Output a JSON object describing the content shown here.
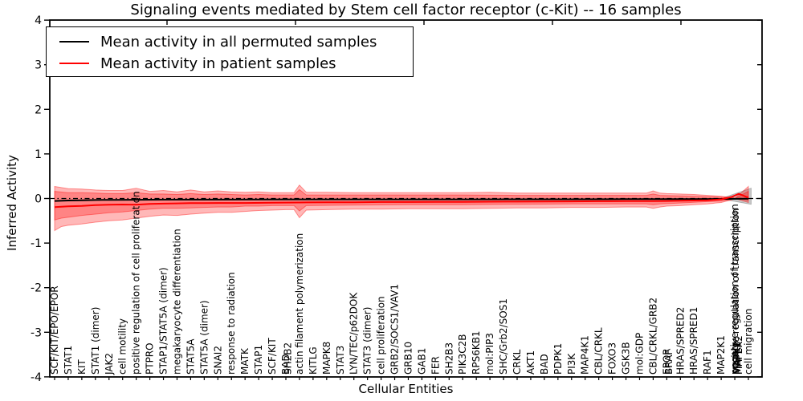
{
  "chart_data": {
    "type": "line",
    "title": "Signaling events mediated by Stem cell factor receptor (c-Kit) -- 16 samples",
    "xlabel": "Cellular Entities",
    "ylabel": "Inferred Activity",
    "ylim": [
      -4,
      4
    ],
    "yticks": [
      "4",
      "3",
      "2",
      "1",
      "0",
      "-1",
      "-2",
      "-3",
      "-4"
    ],
    "ytick_values": [
      4,
      3,
      2,
      1,
      0,
      -1,
      -2,
      -3,
      -4
    ],
    "grid": false,
    "zero_line": {
      "y": 0,
      "style": "dashdot",
      "color": "#000000"
    },
    "legend": {
      "position": "upper left",
      "entries": [
        {
          "label": "Mean activity in all permuted samples",
          "color": "#000000"
        },
        {
          "label": "Mean activity in patient samples",
          "color": "#ff0000"
        }
      ]
    },
    "entities": [
      {
        "i": 0,
        "label": "SCF/KIT/EPO/EPOR"
      },
      {
        "i": 1,
        "label": "STAT1"
      },
      {
        "i": 2,
        "label": "KIT"
      },
      {
        "i": 3,
        "label": "STAT1 (dimer)"
      },
      {
        "i": 4,
        "label": "JAK2"
      },
      {
        "i": 5,
        "label": "cell motility"
      },
      {
        "i": 6,
        "label": "positive regulation of cell proliferation"
      },
      {
        "i": 7,
        "label": "PTPRO"
      },
      {
        "i": 8,
        "label": "STAP1/STAT5A (dimer)"
      },
      {
        "i": 9,
        "label": "megakaryocyte differentiation"
      },
      {
        "i": 10,
        "label": "STAT5A"
      },
      {
        "i": 11,
        "label": "STAT5A (dimer)"
      },
      {
        "i": 12,
        "label": "SNAI2"
      },
      {
        "i": 13,
        "label": "response to radiation"
      },
      {
        "i": 14,
        "label": "MATK"
      },
      {
        "i": 15,
        "label": "STAP1"
      },
      {
        "i": 16,
        "label": "SCF/KIT"
      },
      {
        "i": 17,
        "label": "BAD"
      },
      {
        "i": 17.15,
        "label": "SH2B2"
      },
      {
        "i": 18,
        "label": "actin filament polymerization"
      },
      {
        "i": 19,
        "label": "KITLG"
      },
      {
        "i": 20,
        "label": "MAPK8"
      },
      {
        "i": 21,
        "label": "STAT3"
      },
      {
        "i": 22,
        "label": "LYN/TEC/p62DOK"
      },
      {
        "i": 23,
        "label": "STAT3 (dimer)"
      },
      {
        "i": 24,
        "label": "cell proliferation"
      },
      {
        "i": 25,
        "label": "GRB2/SOCS1/VAV1"
      },
      {
        "i": 26,
        "label": "GRB10"
      },
      {
        "i": 27,
        "label": "GAB1"
      },
      {
        "i": 28,
        "label": "FER"
      },
      {
        "i": 29,
        "label": "SH2B3"
      },
      {
        "i": 30,
        "label": "PIK3C2B"
      },
      {
        "i": 31,
        "label": "RPS6KB1"
      },
      {
        "i": 32,
        "label": "mol:PIP3"
      },
      {
        "i": 33,
        "label": "SHC/Grb2/SOS1"
      },
      {
        "i": 34,
        "label": "CRKL"
      },
      {
        "i": 35,
        "label": "AKT1"
      },
      {
        "i": 36,
        "label": "BAD"
      },
      {
        "i": 37,
        "label": "PDPK1"
      },
      {
        "i": 38,
        "label": "PI3K"
      },
      {
        "i": 39,
        "label": "MAP4K1"
      },
      {
        "i": 40,
        "label": "CBL/CRKL"
      },
      {
        "i": 41,
        "label": "FOXO3"
      },
      {
        "i": 42,
        "label": "GSK3B"
      },
      {
        "i": 43,
        "label": "mol:GDP"
      },
      {
        "i": 44,
        "label": "CBL/CRKL/GRB2"
      },
      {
        "i": 45,
        "label": "EPOR"
      },
      {
        "i": 45.15,
        "label": "BRAF"
      },
      {
        "i": 46,
        "label": "HRAS/SPRED2"
      },
      {
        "i": 47,
        "label": "HRAS/SPRED1"
      },
      {
        "i": 48,
        "label": "RAF1"
      },
      {
        "i": 49,
        "label": "MAP2K1"
      },
      {
        "i": 50,
        "label": "negative regulation of transcription"
      },
      {
        "i": 50.07,
        "label": "positive regulation of transcription"
      },
      {
        "i": 50.14,
        "label": "MAPK1"
      },
      {
        "i": 50.21,
        "label": "MAPK3"
      },
      {
        "i": 50.28,
        "label": "MAP2K2"
      },
      {
        "i": 50.18,
        "label": "FES"
      },
      {
        "i": 51,
        "label": "cell migration"
      }
    ],
    "series": [
      {
        "name": "Mean activity in all permuted samples",
        "color": "#000000",
        "width": 2,
        "points": [
          [
            0,
            -0.055
          ],
          [
            1,
            -0.045
          ],
          [
            2,
            -0.04
          ],
          [
            3,
            -0.035
          ],
          [
            4,
            -0.03
          ],
          [
            6,
            -0.028
          ],
          [
            8,
            -0.025
          ],
          [
            10,
            -0.025
          ],
          [
            14,
            -0.022
          ],
          [
            18,
            -0.02
          ],
          [
            22,
            -0.02
          ],
          [
            26,
            -0.02
          ],
          [
            30,
            -0.02
          ],
          [
            34,
            -0.018
          ],
          [
            38,
            -0.018
          ],
          [
            42,
            -0.015
          ],
          [
            46,
            -0.012
          ],
          [
            49,
            -0.01
          ],
          [
            51,
            -0.005
          ]
        ]
      },
      {
        "name": "Mean activity in patient samples",
        "color": "#ff0000",
        "width": 2,
        "points": [
          [
            0,
            -0.195
          ],
          [
            1,
            -0.175
          ],
          [
            2,
            -0.165
          ],
          [
            3,
            -0.15
          ],
          [
            4,
            -0.14
          ],
          [
            5,
            -0.135
          ],
          [
            6,
            -0.14
          ],
          [
            7,
            -0.12
          ],
          [
            8,
            -0.115
          ],
          [
            9,
            -0.11
          ],
          [
            10,
            -0.105
          ],
          [
            12,
            -0.1
          ],
          [
            14,
            -0.1
          ],
          [
            16,
            -0.095
          ],
          [
            18,
            -0.09
          ],
          [
            20,
            -0.085
          ],
          [
            22,
            -0.085
          ],
          [
            24,
            -0.08
          ],
          [
            26,
            -0.08
          ],
          [
            28,
            -0.078
          ],
          [
            30,
            -0.075
          ],
          [
            32,
            -0.072
          ],
          [
            34,
            -0.07
          ],
          [
            36,
            -0.068
          ],
          [
            38,
            -0.065
          ],
          [
            40,
            -0.062
          ],
          [
            42,
            -0.06
          ],
          [
            44,
            -0.058
          ],
          [
            45,
            -0.055
          ],
          [
            46,
            -0.05
          ],
          [
            47,
            -0.045
          ],
          [
            48,
            -0.04
          ],
          [
            49,
            -0.02
          ],
          [
            49.8,
            0.04
          ],
          [
            50.3,
            0.105
          ],
          [
            51,
            0.02
          ]
        ]
      }
    ],
    "bands": [
      {
        "name": "permuted-band-end-wedge",
        "color": "#8a8a8a",
        "opacity": 0.45,
        "polygon": [
          [
            49.2,
            0.02
          ],
          [
            51.2,
            0.23
          ],
          [
            51.2,
            -0.13
          ],
          [
            49.2,
            -0.02
          ]
        ]
      },
      {
        "name": "patient-band-outer",
        "color": "#ff0000",
        "opacity": 0.28,
        "upper": [
          [
            0,
            0.27
          ],
          [
            1,
            0.22
          ],
          [
            2,
            0.21
          ],
          [
            3,
            0.19
          ],
          [
            4,
            0.18
          ],
          [
            5,
            0.18
          ],
          [
            6,
            0.23
          ],
          [
            7,
            0.16
          ],
          [
            8,
            0.18
          ],
          [
            9,
            0.15
          ],
          [
            10,
            0.19
          ],
          [
            11,
            0.15
          ],
          [
            12,
            0.17
          ],
          [
            13,
            0.15
          ],
          [
            14,
            0.14
          ],
          [
            15,
            0.15
          ],
          [
            16,
            0.13
          ],
          [
            17,
            0.13
          ],
          [
            17.6,
            0.13
          ],
          [
            18,
            0.3
          ],
          [
            18.5,
            0.14
          ],
          [
            20,
            0.14
          ],
          [
            22,
            0.13
          ],
          [
            24,
            0.13
          ],
          [
            26,
            0.13
          ],
          [
            28,
            0.13
          ],
          [
            30,
            0.13
          ],
          [
            32,
            0.14
          ],
          [
            34,
            0.12
          ],
          [
            36,
            0.12
          ],
          [
            38,
            0.12
          ],
          [
            40,
            0.12
          ],
          [
            42,
            0.12
          ],
          [
            43.5,
            0.12
          ],
          [
            44,
            0.17
          ],
          [
            44.5,
            0.12
          ],
          [
            45,
            0.11
          ],
          [
            46,
            0.1
          ],
          [
            47,
            0.09
          ],
          [
            48,
            0.07
          ],
          [
            49,
            0.05
          ],
          [
            50,
            0.01
          ]
        ],
        "lower": [
          [
            0,
            -0.72
          ],
          [
            0.5,
            -0.63
          ],
          [
            1,
            -0.6
          ],
          [
            2,
            -0.57
          ],
          [
            3,
            -0.53
          ],
          [
            4,
            -0.5
          ],
          [
            5,
            -0.48
          ],
          [
            6,
            -0.44
          ],
          [
            7,
            -0.4
          ],
          [
            8,
            -0.37
          ],
          [
            9,
            -0.38
          ],
          [
            10,
            -0.35
          ],
          [
            11,
            -0.33
          ],
          [
            12,
            -0.31
          ],
          [
            13,
            -0.31
          ],
          [
            14,
            -0.29
          ],
          [
            15,
            -0.27
          ],
          [
            16,
            -0.26
          ],
          [
            17,
            -0.25
          ],
          [
            17.6,
            -0.25
          ],
          [
            18,
            -0.43
          ],
          [
            18.5,
            -0.26
          ],
          [
            20,
            -0.25
          ],
          [
            22,
            -0.24
          ],
          [
            24,
            -0.24
          ],
          [
            26,
            -0.23
          ],
          [
            28,
            -0.23
          ],
          [
            30,
            -0.23
          ],
          [
            32,
            -0.22
          ],
          [
            34,
            -0.21
          ],
          [
            36,
            -0.21
          ],
          [
            38,
            -0.2
          ],
          [
            40,
            -0.2
          ],
          [
            42,
            -0.19
          ],
          [
            43.5,
            -0.19
          ],
          [
            44,
            -0.22
          ],
          [
            44.5,
            -0.19
          ],
          [
            45,
            -0.17
          ],
          [
            46,
            -0.16
          ],
          [
            47,
            -0.14
          ],
          [
            48,
            -0.12
          ],
          [
            49,
            -0.09
          ],
          [
            50,
            -0.01
          ]
        ]
      },
      {
        "name": "patient-band-inner",
        "color": "#ff0000",
        "opacity": 0.28,
        "upper": [
          [
            0,
            0.16
          ],
          [
            1,
            0.13
          ],
          [
            2,
            0.13
          ],
          [
            3,
            0.12
          ],
          [
            4,
            0.11
          ],
          [
            5,
            0.11
          ],
          [
            6,
            0.13
          ],
          [
            7,
            0.1
          ],
          [
            8,
            0.1
          ],
          [
            9,
            0.09
          ],
          [
            10,
            0.11
          ],
          [
            11,
            0.09
          ],
          [
            12,
            0.1
          ],
          [
            13,
            0.09
          ],
          [
            14,
            0.08
          ],
          [
            15,
            0.09
          ],
          [
            16,
            0.08
          ],
          [
            17.6,
            0.08
          ],
          [
            18,
            0.2
          ],
          [
            18.5,
            0.08
          ],
          [
            22,
            0.08
          ],
          [
            26,
            0.08
          ],
          [
            30,
            0.08
          ],
          [
            34,
            0.07
          ],
          [
            38,
            0.07
          ],
          [
            42,
            0.07
          ],
          [
            43.5,
            0.07
          ],
          [
            44,
            0.1
          ],
          [
            44.5,
            0.07
          ],
          [
            46,
            0.06
          ],
          [
            48,
            0.04
          ],
          [
            49,
            0.03
          ],
          [
            50,
            0.0
          ]
        ],
        "lower": [
          [
            0,
            -0.48
          ],
          [
            0.5,
            -0.44
          ],
          [
            1,
            -0.42
          ],
          [
            2,
            -0.38
          ],
          [
            3,
            -0.35
          ],
          [
            4,
            -0.32
          ],
          [
            5,
            -0.3
          ],
          [
            6,
            -0.27
          ],
          [
            7,
            -0.24
          ],
          [
            8,
            -0.22
          ],
          [
            9,
            -0.22
          ],
          [
            10,
            -0.21
          ],
          [
            11,
            -0.2
          ],
          [
            12,
            -0.19
          ],
          [
            13,
            -0.19
          ],
          [
            14,
            -0.17
          ],
          [
            15,
            -0.17
          ],
          [
            16,
            -0.16
          ],
          [
            17.6,
            -0.16
          ],
          [
            18,
            -0.28
          ],
          [
            18.5,
            -0.16
          ],
          [
            22,
            -0.15
          ],
          [
            26,
            -0.14
          ],
          [
            30,
            -0.14
          ],
          [
            34,
            -0.13
          ],
          [
            38,
            -0.12
          ],
          [
            42,
            -0.12
          ],
          [
            43.5,
            -0.12
          ],
          [
            44,
            -0.14
          ],
          [
            44.5,
            -0.12
          ],
          [
            46,
            -0.1
          ],
          [
            48,
            -0.07
          ],
          [
            49,
            -0.06
          ],
          [
            50,
            0.0
          ]
        ]
      },
      {
        "name": "patient-band-end-flare-outer",
        "color": "#ff0000",
        "opacity": 0.28,
        "polygon": [
          [
            50,
            0.0
          ],
          [
            51,
            0.27
          ],
          [
            51,
            -0.09
          ]
        ]
      },
      {
        "name": "patient-band-end-flare-inner",
        "color": "#ff0000",
        "opacity": 0.28,
        "polygon": [
          [
            50,
            0.0
          ],
          [
            51,
            0.16
          ],
          [
            51,
            -0.04
          ]
        ]
      }
    ]
  }
}
